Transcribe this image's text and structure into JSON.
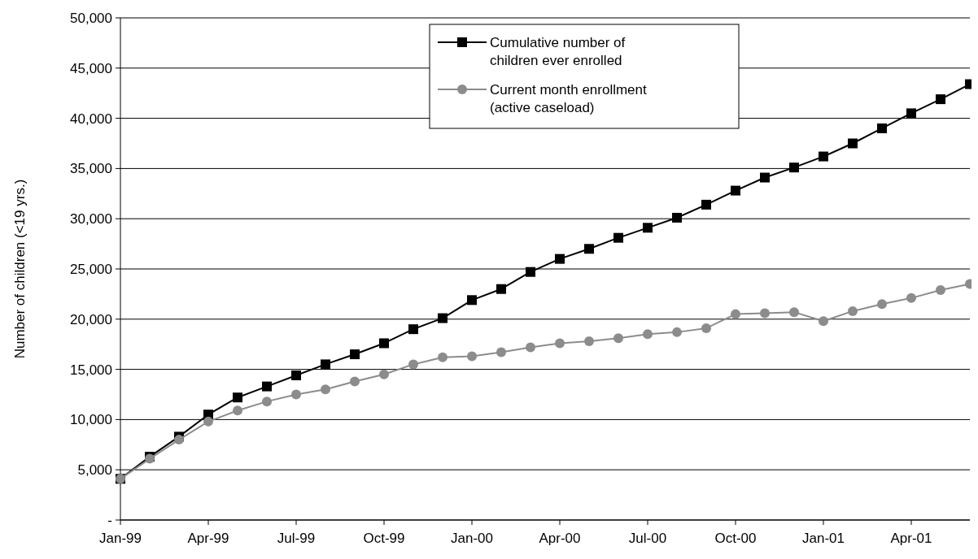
{
  "chart_data": {
    "type": "line",
    "ylabel": "Number of children (<19 yrs.)",
    "categories": [
      "Jan-99",
      null,
      null,
      "Apr-99",
      null,
      null,
      "Jul-99",
      null,
      null,
      "Oct-99",
      null,
      null,
      "Jan-00",
      null,
      null,
      "Apr-00",
      null,
      null,
      "Jul-00",
      null,
      null,
      "Oct-00",
      null,
      null,
      "Jan-01",
      null,
      null,
      "Apr-01",
      null,
      null
    ],
    "series": [
      {
        "name": "Cumulative number of children ever enrolled",
        "color": "#000000",
        "marker": "square",
        "values": [
          4100,
          6300,
          8300,
          10500,
          12200,
          13300,
          14400,
          15500,
          16500,
          17600,
          19000,
          20100,
          21900,
          23000,
          24700,
          26000,
          27000,
          28100,
          29100,
          30100,
          31400,
          32800,
          34100,
          35100,
          36200,
          37500,
          39000,
          40500,
          41900,
          43400
        ]
      },
      {
        "name": "Current month enrollment (active caseload)",
        "color": "#8c8c8c",
        "marker": "circle",
        "values": [
          4100,
          6100,
          8000,
          9800,
          10900,
          11800,
          12500,
          13000,
          13800,
          14500,
          15500,
          16200,
          16300,
          16700,
          17200,
          17600,
          17800,
          18100,
          18500,
          18700,
          19100,
          20500,
          20600,
          20700,
          19800,
          20800,
          21500,
          22100,
          22900,
          23500
        ]
      }
    ],
    "ylim": [
      0,
      50000
    ],
    "yticks": [
      {
        "value": 0,
        "label": "-"
      },
      {
        "value": 5000,
        "label": "5,000"
      },
      {
        "value": 10000,
        "label": "10,000"
      },
      {
        "value": 15000,
        "label": "15,000"
      },
      {
        "value": 20000,
        "label": "20,000"
      },
      {
        "value": 25000,
        "label": "25,000"
      },
      {
        "value": 30000,
        "label": "30,000"
      },
      {
        "value": 35000,
        "label": "35,000"
      },
      {
        "value": 40000,
        "label": "40,000"
      },
      {
        "value": 45000,
        "label": "45,000"
      },
      {
        "value": 50000,
        "label": "50,000"
      }
    ],
    "grid": "y",
    "legend": "top",
    "line_style": "solid"
  }
}
